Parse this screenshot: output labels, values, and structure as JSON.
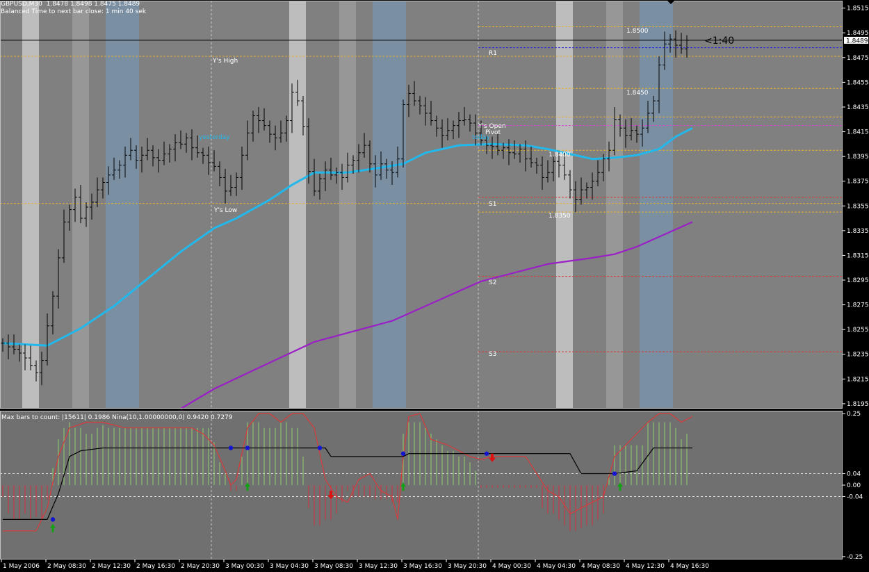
{
  "header": {
    "title": "GBPUSD,M30  1.8478 1.8498 1.8475 1.8489",
    "subtitle": "Balanced Time to next bar close: 1 min 40 sek"
  },
  "colors": {
    "background": "#808080",
    "panel": "#707070",
    "band_light": "#bdbdbd",
    "band_mid": "#979797",
    "band_blue": "#7b8fa3",
    "ma_fast": "#22b8ec",
    "ma_slow": "#9a1fc6",
    "level_orange": "#e6b22e",
    "level_red": "#d83a3a",
    "level_magenta": "#d348d3",
    "level_blue": "#2424d8",
    "hist_green": "#90d070",
    "hist_red": "#d03040",
    "osc_red": "#d83a3a",
    "osc_black": "#000000",
    "signal_dot": "#1414d0",
    "arrow_up": "#16a016",
    "arrow_down": "#e01010"
  },
  "chart_data": {
    "type": "candlestick",
    "symbol": "GBPUSD",
    "timeframe": "M30",
    "ohlc_last": {
      "open": 1.8478,
      "high": 1.8498,
      "low": 1.8475,
      "close": 1.8489
    },
    "price_axis": {
      "ylim": [
        1.8191,
        1.8521
      ],
      "ticks": [
        "1.8515",
        "1.8495",
        "1.8475",
        "1.8455",
        "1.8435",
        "1.8415",
        "1.8395",
        "1.8375",
        "1.8355",
        "1.8335",
        "1.8315",
        "1.8295",
        "1.8275",
        "1.8255",
        "1.8235",
        "1.8215",
        "1.8195"
      ],
      "current_price_label": "1.8489",
      "current_price": 1.8489
    },
    "x_axis": {
      "bars_visible": 124,
      "tick_labels": [
        "1 May 2006",
        "2 May 08:30",
        "2 May 12:30",
        "2 May 16:30",
        "2 May 20:30",
        "3 May 00:30",
        "3 May 04:30",
        "3 May 08:30",
        "3 May 12:30",
        "3 May 16:30",
        "3 May 20:30",
        "4 May 00:30",
        "4 May 04:30",
        "4 May 08:30",
        "4 May 12:30",
        "4 May 16:30"
      ]
    },
    "session_bands": [
      {
        "bars": [
          4,
          6
        ],
        "kind": "light"
      },
      {
        "bars": [
          13,
          15
        ],
        "kind": "mid"
      },
      {
        "bars": [
          19,
          24
        ],
        "kind": "blue"
      },
      {
        "bars": [
          52,
          54
        ],
        "kind": "light"
      },
      {
        "bars": [
          61,
          63
        ],
        "kind": "mid"
      },
      {
        "bars": [
          67,
          72
        ],
        "kind": "blue"
      },
      {
        "bars": [
          100,
          102
        ],
        "kind": "light"
      },
      {
        "bars": [
          109,
          111
        ],
        "kind": "mid"
      },
      {
        "bars": [
          115,
          120
        ],
        "kind": "blue"
      }
    ],
    "day_separators": [
      37.5,
      85.5
    ],
    "ma_fast": [
      [
        0,
        1.8244
      ],
      [
        8,
        1.8242
      ],
      [
        14,
        1.8256
      ],
      [
        20,
        1.8274
      ],
      [
        26,
        1.8296
      ],
      [
        32,
        1.8318
      ],
      [
        38,
        1.8337
      ],
      [
        42,
        1.8345
      ],
      [
        48,
        1.836
      ],
      [
        52,
        1.8372
      ],
      [
        56,
        1.8382
      ],
      [
        62,
        1.8382
      ],
      [
        68,
        1.8386
      ],
      [
        72,
        1.8389
      ],
      [
        76,
        1.8398
      ],
      [
        82,
        1.8404
      ],
      [
        88,
        1.8405
      ],
      [
        94,
        1.8404
      ],
      [
        98,
        1.8401
      ],
      [
        102,
        1.8397
      ],
      [
        106,
        1.8393
      ],
      [
        110,
        1.8394
      ],
      [
        114,
        1.8396
      ],
      [
        118,
        1.8401
      ],
      [
        121,
        1.8411
      ],
      [
        124,
        1.8418
      ]
    ],
    "ma_slow": [
      [
        32,
        1.8191
      ],
      [
        38,
        1.8207
      ],
      [
        46,
        1.8224
      ],
      [
        56,
        1.8245
      ],
      [
        70,
        1.8262
      ],
      [
        86,
        1.8294
      ],
      [
        98,
        1.8308
      ],
      [
        106,
        1.8313
      ],
      [
        110,
        1.8316
      ],
      [
        114,
        1.8322
      ],
      [
        118,
        1.833
      ],
      [
        124,
        1.8342
      ]
    ],
    "levels": [
      {
        "price": 1.85,
        "color": "orange",
        "from_bar": 86
      },
      {
        "price": 1.8476,
        "color": "orange",
        "from_bar": 0,
        "label": "Y's High"
      },
      {
        "price": 1.845,
        "color": "orange",
        "from_bar": 86
      },
      {
        "price": 1.8427,
        "color": "orange",
        "from_bar": 86
      },
      {
        "price": 1.84,
        "color": "orange",
        "from_bar": 86
      },
      {
        "price": 1.8357,
        "color": "orange",
        "from_bar": 0,
        "label": "Y's Low"
      },
      {
        "price": 1.835,
        "color": "orange",
        "from_bar": 86
      },
      {
        "price": 1.8483,
        "color": "blue",
        "from_bar": 86,
        "label": "R1"
      },
      {
        "price": 1.842,
        "color": "magenta",
        "from_bar": 86
      },
      {
        "price": 1.8362,
        "color": "red",
        "from_bar": 86,
        "label": "S1"
      },
      {
        "price": 1.8298,
        "color": "red",
        "from_bar": 86,
        "label": "S2"
      },
      {
        "price": 1.8237,
        "color": "red",
        "from_bar": 86,
        "label": "S3"
      }
    ],
    "level_labels": {
      "yhigh": "Y's High",
      "ylow": "Y's Low",
      "yesterday": "yesterday",
      "today": "today",
      "r1": "R1",
      "s1": "S1",
      "s2": "S2",
      "s3": "S3",
      "yopen": "Y's Open",
      "pivot": "Pivot",
      "p8500": "1.8500",
      "p8450": "1.8450",
      "p8400": "1.8400",
      "p8350": "1.8350",
      "timer": "<1:40"
    },
    "closes": [
      1.8244,
      1.8241,
      1.8239,
      1.8236,
      1.8232,
      1.8226,
      1.822,
      1.823,
      1.8258,
      1.8282,
      1.8313,
      1.8342,
      1.8352,
      1.8362,
      1.8345,
      1.8354,
      1.8358,
      1.8368,
      1.8374,
      1.838,
      1.8384,
      1.8388,
      1.8396,
      1.84,
      1.8392,
      1.8396,
      1.84,
      1.8394,
      1.8392,
      1.8397,
      1.8401,
      1.8406,
      1.8405,
      1.841,
      1.8402,
      1.8398,
      1.8396,
      1.839,
      1.8387,
      1.8378,
      1.8367,
      1.837,
      1.8378,
      1.8396,
      1.8414,
      1.8428,
      1.8424,
      1.842,
      1.8413,
      1.841,
      1.8414,
      1.8424,
      1.8447,
      1.844,
      1.8419,
      1.8383,
      1.8367,
      1.8377,
      1.8384,
      1.838,
      1.8382,
      1.8378,
      1.8388,
      1.8392,
      1.8398,
      1.8404,
      1.8389,
      1.838,
      1.8389,
      1.8384,
      1.8382,
      1.8393,
      1.8437,
      1.8446,
      1.844,
      1.8436,
      1.843,
      1.8424,
      1.8418,
      1.8412,
      1.8416,
      1.842,
      1.8424,
      1.8425,
      1.8422,
      1.8414,
      1.8408,
      1.8404,
      1.8403,
      1.84,
      1.8402,
      1.8398,
      1.8397,
      1.8401,
      1.8393,
      1.839,
      1.8388,
      1.8378,
      1.8382,
      1.8391,
      1.8388,
      1.838,
      1.8368,
      1.836,
      1.8368,
      1.837,
      1.8375,
      1.8382,
      1.8393,
      1.84,
      1.8425,
      1.8418,
      1.8412,
      1.8416,
      1.8413,
      1.8418,
      1.843,
      1.844,
      1.8469,
      1.8486,
      1.849,
      1.8485,
      1.8482,
      1.8489
    ],
    "oscillator": {
      "header": "Max bars to count: |15611|  0.1986  Nina(10,1.00000000,0) 0.9420 0.7279",
      "ylim": [
        -0.26,
        0.26
      ],
      "ticks": [
        "0.25",
        "0.04",
        "0.00",
        "-0.04",
        "-0.25"
      ],
      "levels": [
        0.04,
        -0.04
      ],
      "histogram": [
        -0.04,
        -0.1,
        -0.12,
        -0.12,
        -0.1,
        -0.12,
        -0.11,
        -0.12,
        -0.05,
        0.06,
        0.16,
        0.2,
        0.22,
        0.2,
        0.2,
        0.18,
        0.18,
        0.2,
        0.21,
        0.2,
        0.2,
        0.2,
        0.2,
        0.2,
        0.2,
        0.2,
        0.2,
        0.2,
        0.2,
        0.2,
        0.2,
        0.2,
        0.2,
        0.2,
        0.2,
        0.2,
        0.2,
        0.2,
        0.15,
        0.08,
        0.04,
        -0.02,
        -0.02,
        0.1,
        0.22,
        0.22,
        0.22,
        0.2,
        0.2,
        0.2,
        0.22,
        0.22,
        0.2,
        0.2,
        0.1,
        -0.08,
        -0.14,
        -0.14,
        -0.12,
        -0.12,
        -0.1,
        -0.06,
        -0.02,
        -0.04,
        -0.04,
        -0.04,
        -0.04,
        -0.05,
        -0.05,
        -0.05,
        -0.06,
        -0.06,
        0.18,
        0.22,
        0.22,
        0.22,
        0.2,
        0.18,
        0.16,
        0.14,
        0.12,
        0.12,
        0.1,
        0.1,
        0.08,
        0.05,
        -0.01,
        -0.01,
        -0.01,
        -0.01,
        -0.01,
        -0.01,
        -0.01,
        -0.01,
        -0.01,
        -0.01,
        -0.01,
        -0.08,
        -0.1,
        -0.1,
        -0.12,
        -0.14,
        -0.16,
        -0.16,
        -0.15,
        -0.14,
        -0.14,
        -0.12,
        -0.1,
        0.04,
        0.14,
        0.14,
        0.14,
        0.14,
        0.14,
        0.14,
        0.22,
        0.22,
        0.22,
        0.22,
        0.22,
        0.2,
        0.16,
        0.18
      ],
      "red_line": [
        [
          0,
          -0.16
        ],
        [
          6,
          -0.16
        ],
        [
          8,
          -0.08
        ],
        [
          10,
          0.1
        ],
        [
          12,
          0.2
        ],
        [
          15,
          0.22
        ],
        [
          18,
          0.22
        ],
        [
          22,
          0.2
        ],
        [
          26,
          0.2
        ],
        [
          30,
          0.2
        ],
        [
          34,
          0.2
        ],
        [
          36,
          0.18
        ],
        [
          38,
          0.14
        ],
        [
          40,
          0.05
        ],
        [
          41,
          0.0
        ],
        [
          42,
          0.02
        ],
        [
          44,
          0.2
        ],
        [
          46,
          0.25
        ],
        [
          48,
          0.25
        ],
        [
          50,
          0.22
        ],
        [
          52,
          0.25
        ],
        [
          54,
          0.25
        ],
        [
          56,
          0.2
        ],
        [
          58,
          0.02
        ],
        [
          60,
          -0.04
        ],
        [
          62,
          -0.06
        ],
        [
          64,
          0.02
        ],
        [
          66,
          0.04
        ],
        [
          68,
          -0.02
        ],
        [
          70,
          -0.04
        ],
        [
          71,
          -0.12
        ],
        [
          72,
          0.1
        ],
        [
          73,
          0.24
        ],
        [
          75,
          0.25
        ],
        [
          77,
          0.16
        ],
        [
          80,
          0.14
        ],
        [
          84,
          0.1
        ],
        [
          86,
          0.09
        ],
        [
          88,
          0.1
        ],
        [
          94,
          0.1
        ],
        [
          96,
          0.04
        ],
        [
          98,
          -0.02
        ],
        [
          100,
          -0.04
        ],
        [
          102,
          -0.1
        ],
        [
          104,
          -0.08
        ],
        [
          106,
          -0.06
        ],
        [
          108,
          -0.04
        ],
        [
          110,
          0.1
        ],
        [
          112,
          0.14
        ],
        [
          114,
          0.18
        ],
        [
          116,
          0.22
        ],
        [
          118,
          0.25
        ],
        [
          120,
          0.25
        ],
        [
          122,
          0.22
        ],
        [
          124,
          0.24
        ]
      ],
      "black_line": [
        [
          0,
          -0.12
        ],
        [
          8,
          -0.12
        ],
        [
          10,
          -0.03
        ],
        [
          12,
          0.1
        ],
        [
          14,
          0.12
        ],
        [
          18,
          0.13
        ],
        [
          58,
          0.13
        ],
        [
          59,
          0.1
        ],
        [
          60,
          0.1
        ],
        [
          72,
          0.1
        ],
        [
          73,
          0.11
        ],
        [
          102,
          0.11
        ],
        [
          104,
          0.04
        ],
        [
          110,
          0.04
        ],
        [
          114,
          0.05
        ],
        [
          117,
          0.13
        ],
        [
          124,
          0.13
        ]
      ],
      "dots": [
        [
          9,
          -0.12
        ],
        [
          41,
          0.13
        ],
        [
          44,
          0.13
        ],
        [
          57,
          0.13
        ],
        [
          72,
          0.11
        ],
        [
          87,
          0.11
        ],
        [
          110,
          0.04
        ]
      ],
      "arrows": [
        {
          "bar": 9,
          "dir": "up"
        },
        {
          "bar": 44,
          "dir": "up"
        },
        {
          "bar": 59,
          "dir": "down"
        },
        {
          "bar": 72,
          "dir": "up"
        },
        {
          "bar": 88,
          "dir": "down"
        },
        {
          "bar": 111,
          "dir": "up"
        }
      ]
    }
  }
}
